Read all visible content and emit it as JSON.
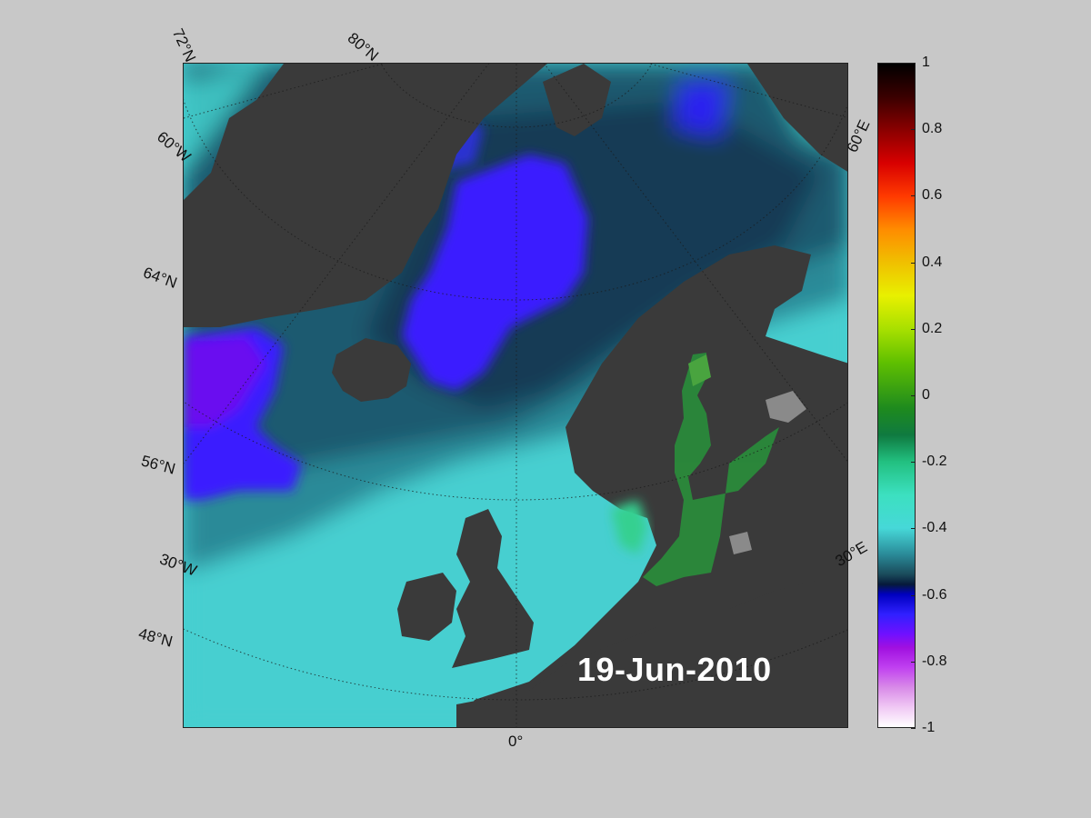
{
  "map": {
    "date": "19-Jun-2010",
    "projection": "polar stereographic",
    "background_color": "#c8c8c8",
    "land_color": "#3a3a3a",
    "ocean_low_color": "#46cfd0",
    "ocean_mid_color": "#1d5a70",
    "ocean_high_color": "#3322ff",
    "baltic_color": "#2a8a3a"
  },
  "labels": {
    "lat_72n": "72°N",
    "lat_80n": "80°N",
    "lon_60w": "60°W",
    "lat_64n": "64°N",
    "lat_56n": "56°N",
    "lon_30w": "30°W",
    "lat_48n": "48°N",
    "lon_0": "0°",
    "lon_60e": "60°E",
    "lon_30e": "30°E"
  },
  "colorbar": {
    "min": -1,
    "max": 1,
    "ticks": [
      "1",
      "0.8",
      "0.6",
      "0.4",
      "0.2",
      "0",
      "-0.2",
      "-0.4",
      "-0.6",
      "-0.8",
      "-1"
    ]
  }
}
